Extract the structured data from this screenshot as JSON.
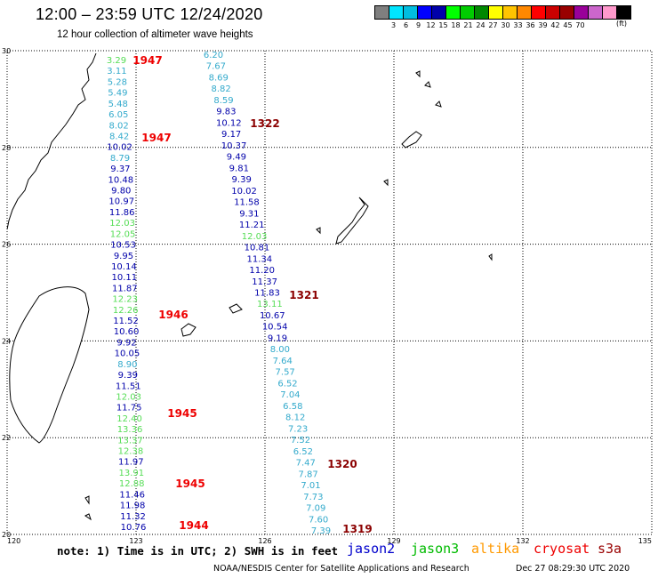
{
  "header": {
    "title": "12:00 – 23:59 UTC 12/24/2020",
    "subtitle": "12 hour collection of altimeter wave heights"
  },
  "color_scale": {
    "unit": "(ft)",
    "labels": [
      "",
      "3",
      "6",
      "9",
      "12",
      "15",
      "18",
      "21",
      "24",
      "27",
      "30",
      "33",
      "36",
      "39",
      "42",
      "45",
      "70"
    ],
    "colors": [
      "#7f7f7f",
      "#00e5ff",
      "#00bde0",
      "#0000ff",
      "#0000aa",
      "#00ff00",
      "#00cc00",
      "#008800",
      "#ffff00",
      "#ffc400",
      "#ff8800",
      "#ff0000",
      "#cc0000",
      "#990000",
      "#990099",
      "#cc66cc",
      "#ff99cc",
      "#000000"
    ]
  },
  "map": {
    "lat_labels": [
      "30",
      "28",
      "26",
      "24",
      "22",
      "20"
    ],
    "lon_labels": [
      "120",
      "123",
      "126",
      "129",
      "132",
      "135"
    ],
    "track_colors": {
      "c": "#33aacc",
      "d": "#0000aa",
      "g": "#55dd55"
    },
    "track1": [
      [
        "3.29",
        "g"
      ],
      [
        "3.11",
        "c"
      ],
      [
        "5.28",
        "c"
      ],
      [
        "5.49",
        "c"
      ],
      [
        "5.48",
        "c"
      ],
      [
        "6.05",
        "c"
      ],
      [
        "8.02",
        "c"
      ],
      [
        "8.42",
        "c"
      ],
      [
        "10.02",
        "d"
      ],
      [
        "8.79",
        "c"
      ],
      [
        "9.37",
        "d"
      ],
      [
        "10.48",
        "d"
      ],
      [
        "9.80",
        "d"
      ],
      [
        "10.97",
        "d"
      ],
      [
        "11.86",
        "d"
      ],
      [
        "12.03",
        "g"
      ],
      [
        "12.05",
        "g"
      ],
      [
        "10.53",
        "d"
      ],
      [
        "9.95",
        "d"
      ],
      [
        "10.14",
        "d"
      ],
      [
        "10.11",
        "d"
      ],
      [
        "11.87",
        "d"
      ],
      [
        "12.23",
        "g"
      ],
      [
        "12.26",
        "g"
      ],
      [
        "11.52",
        "d"
      ],
      [
        "10.60",
        "d"
      ],
      [
        "9.92",
        "d"
      ],
      [
        "10.05",
        "d"
      ],
      [
        "8.90",
        "c"
      ],
      [
        "9.39",
        "d"
      ],
      [
        "11.51",
        "d"
      ],
      [
        "12.03",
        "g"
      ],
      [
        "11.75",
        "d"
      ],
      [
        "12.40",
        "g"
      ],
      [
        "13.36",
        "g"
      ],
      [
        "13.37",
        "g"
      ],
      [
        "12.38",
        "g"
      ],
      [
        "11.97",
        "d"
      ],
      [
        "13.91",
        "g"
      ],
      [
        "12.88",
        "g"
      ],
      [
        "11.46",
        "d"
      ],
      [
        "11.98",
        "d"
      ],
      [
        "11.32",
        "d"
      ],
      [
        "10.76",
        "d"
      ]
    ],
    "track2": [
      [
        "6.20",
        "c"
      ],
      [
        "7.67",
        "c"
      ],
      [
        "8.69",
        "c"
      ],
      [
        "8.82",
        "c"
      ],
      [
        "8.59",
        "c"
      ],
      [
        "9.83",
        "d"
      ],
      [
        "10.12",
        "d"
      ],
      [
        "9.17",
        "d"
      ],
      [
        "10.37",
        "d"
      ],
      [
        "9.49",
        "d"
      ],
      [
        "9.81",
        "d"
      ],
      [
        "9.39",
        "d"
      ],
      [
        "10.02",
        "d"
      ],
      [
        "11.58",
        "d"
      ],
      [
        "9.31",
        "d"
      ],
      [
        "11.21",
        "d"
      ],
      [
        "12.03",
        "g"
      ],
      [
        "10.81",
        "d"
      ],
      [
        "11.34",
        "d"
      ],
      [
        "11.20",
        "d"
      ],
      [
        "11.37",
        "d"
      ],
      [
        "11.83",
        "d"
      ],
      [
        "13.11",
        "g"
      ],
      [
        "10.67",
        "d"
      ],
      [
        "10.54",
        "d"
      ],
      [
        "9.19",
        "d"
      ],
      [
        "8.00",
        "c"
      ],
      [
        "7.64",
        "c"
      ],
      [
        "7.57",
        "c"
      ],
      [
        "6.52",
        "c"
      ],
      [
        "7.04",
        "c"
      ],
      [
        "6.58",
        "c"
      ],
      [
        "8.12",
        "c"
      ],
      [
        "7.23",
        "c"
      ],
      [
        "7.52",
        "c"
      ],
      [
        "6.52",
        "c"
      ],
      [
        "7.47",
        "c"
      ],
      [
        "7.87",
        "c"
      ],
      [
        "7.01",
        "c"
      ],
      [
        "7.73",
        "c"
      ],
      [
        "7.09",
        "c"
      ],
      [
        "7.60",
        "c"
      ],
      [
        "7.39",
        "c"
      ]
    ],
    "track1_times": [
      "1947",
      "1947",
      "1946",
      "1945",
      "1945",
      "1944"
    ],
    "track2_times": [
      "1322",
      "1321",
      "1320",
      "1319"
    ]
  },
  "footnote": "note: 1) Time is in UTC; 2) SWH is in feet",
  "legend": [
    {
      "name": "jason2",
      "color": "#0000cc"
    },
    {
      "name": "jason3",
      "color": "#00bb00"
    },
    {
      "name": "altika",
      "color": "#ff9900"
    },
    {
      "name": "cryosat",
      "color": "#ee0000"
    },
    {
      "name": "s3a",
      "color": "#990000"
    }
  ],
  "credit": "NOAA/NESDIS Center for Satellite Applications and Research",
  "generated": "Dec 27 08:29:30 UTC 2020"
}
